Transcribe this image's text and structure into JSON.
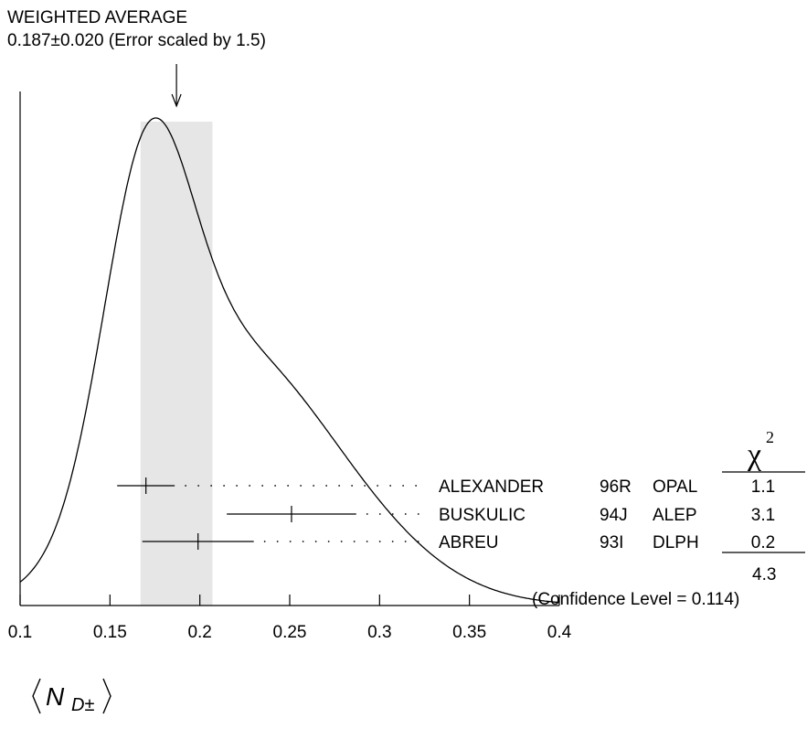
{
  "header": {
    "title": "WEIGHTED AVERAGE",
    "subtitle": "0.187±0.020 (Error scaled by 1.5)"
  },
  "chart_data": {
    "type": "ideogram",
    "weighted_average": {
      "value": 0.187,
      "error": 0.02,
      "scale_factor": 1.5
    },
    "xlim": [
      0.1,
      0.4
    ],
    "x_ticks": [
      "0.1",
      "0.15",
      "0.2",
      "0.25",
      "0.3",
      "0.35",
      "0.4"
    ],
    "x_tick_values": [
      0.1,
      0.15,
      0.2,
      0.25,
      0.3,
      0.35,
      0.4
    ],
    "xlabel": {
      "symbol": "N",
      "subscript": "D±"
    },
    "measurements": [
      {
        "author": "ALEXANDER",
        "ref": "96R",
        "experiment": "OPAL",
        "value": 0.17,
        "err_low": 0.016,
        "err_high": 0.016,
        "chi2": "1.1"
      },
      {
        "author": "BUSKULIC",
        "ref": "94J",
        "experiment": "ALEP",
        "value": 0.251,
        "err_low": 0.036,
        "err_high": 0.036,
        "chi2": "3.1"
      },
      {
        "author": "ABREU",
        "ref": "93I",
        "experiment": "DLPH",
        "value": 0.199,
        "err_low": 0.031,
        "err_high": 0.031,
        "chi2": "0.2"
      }
    ],
    "chi2_header": "χ",
    "chi2_header_sup": "2",
    "chi2_total": "4.3",
    "confidence": "(Confidence Level = 0.114)",
    "colors": {
      "band": "#e6e6e6",
      "line": "#000000"
    }
  }
}
